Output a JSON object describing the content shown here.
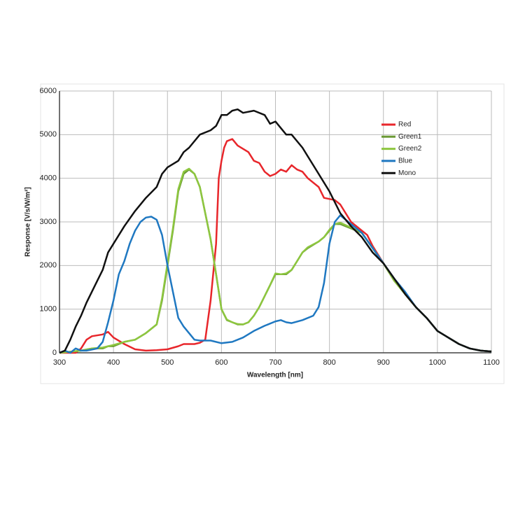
{
  "chart_data": {
    "type": "line",
    "xlabel": "Wavelength [nm]",
    "ylabel": "Response [V/s/W/m²]",
    "xlim": [
      300,
      1100
    ],
    "xticks": [
      300,
      400,
      500,
      600,
      700,
      800,
      900,
      1000,
      1100
    ],
    "ylim": [
      0,
      6000
    ],
    "yticks": [
      0,
      1000,
      2000,
      3000,
      4000,
      5000,
      6000
    ],
    "grid": true,
    "legend": "upper right",
    "series": [
      {
        "name": "Red",
        "color": "#e8262b",
        "x": [
          300,
          330,
          340,
          350,
          360,
          380,
          390,
          400,
          420,
          440,
          460,
          480,
          500,
          520,
          530,
          550,
          560,
          570,
          580,
          590,
          595,
          600,
          605,
          610,
          620,
          630,
          650,
          660,
          670,
          680,
          690,
          700,
          710,
          720,
          730,
          740,
          750,
          760,
          780,
          790,
          810,
          820,
          840,
          860,
          870,
          880,
          900,
          920,
          930,
          940,
          960,
          980,
          1000,
          1020,
          1040,
          1060,
          1080,
          1100
        ],
        "values": [
          0,
          0,
          100,
          300,
          380,
          420,
          480,
          350,
          200,
          80,
          50,
          60,
          80,
          150,
          200,
          200,
          230,
          300,
          1200,
          2500,
          4000,
          4400,
          4700,
          4850,
          4900,
          4750,
          4600,
          4400,
          4350,
          4150,
          4050,
          4100,
          4200,
          4150,
          4300,
          4200,
          4150,
          4000,
          3800,
          3550,
          3500,
          3400,
          3000,
          2800,
          2700,
          2450,
          2050,
          1650,
          1550,
          1350,
          1050,
          800,
          500,
          350,
          200,
          100,
          50,
          30
        ]
      },
      {
        "name": "Green1",
        "color": "#6b9a35",
        "x": [
          300,
          340,
          360,
          380,
          390,
          400,
          420,
          440,
          460,
          480,
          490,
          500,
          510,
          520,
          530,
          540,
          550,
          560,
          570,
          580,
          590,
          600,
          610,
          620,
          630,
          640,
          650,
          660,
          670,
          680,
          690,
          700,
          710,
          720,
          730,
          740,
          750,
          760,
          780,
          790,
          800,
          810,
          820,
          840,
          860,
          880,
          900,
          920,
          940,
          960,
          980,
          1000,
          1020,
          1040,
          1060,
          1080,
          1100
        ],
        "values": [
          0,
          50,
          100,
          100,
          150,
          150,
          250,
          300,
          450,
          650,
          1200,
          2000,
          2800,
          3700,
          4100,
          4200,
          4100,
          3800,
          3200,
          2600,
          1800,
          1000,
          750,
          700,
          650,
          650,
          700,
          850,
          1050,
          1300,
          1550,
          1800,
          1800,
          1800,
          1900,
          2100,
          2300,
          2400,
          2550,
          2650,
          2800,
          2950,
          2950,
          2850,
          2750,
          2400,
          2050,
          1650,
          1350,
          1050,
          800,
          500,
          350,
          200,
          100,
          50,
          30
        ]
      },
      {
        "name": "Green2",
        "color": "#8dc63f",
        "x": [
          300,
          340,
          360,
          380,
          390,
          400,
          420,
          440,
          460,
          480,
          490,
          500,
          510,
          520,
          530,
          540,
          550,
          560,
          570,
          580,
          590,
          600,
          610,
          620,
          630,
          640,
          650,
          660,
          670,
          680,
          690,
          700,
          710,
          720,
          730,
          740,
          750,
          760,
          780,
          790,
          800,
          810,
          820,
          840,
          860,
          880,
          900,
          920,
          940,
          960,
          980,
          1000,
          1020,
          1040,
          1060,
          1080,
          1100
        ],
        "values": [
          0,
          50,
          100,
          120,
          150,
          180,
          250,
          300,
          450,
          650,
          1250,
          2050,
          2850,
          3750,
          4150,
          4220,
          4100,
          3800,
          3200,
          2600,
          1800,
          1000,
          760,
          700,
          660,
          650,
          700,
          850,
          1050,
          1300,
          1550,
          1820,
          1800,
          1820,
          1900,
          2100,
          2300,
          2420,
          2550,
          2650,
          2820,
          2950,
          2980,
          2870,
          2750,
          2400,
          2050,
          1650,
          1350,
          1050,
          800,
          500,
          350,
          200,
          100,
          50,
          30
        ]
      },
      {
        "name": "Blue",
        "color": "#1f78c1",
        "x": [
          300,
          310,
          320,
          330,
          340,
          350,
          370,
          380,
          390,
          400,
          410,
          420,
          430,
          440,
          450,
          460,
          470,
          480,
          490,
          500,
          510,
          520,
          530,
          540,
          550,
          560,
          580,
          600,
          620,
          640,
          660,
          680,
          700,
          710,
          720,
          730,
          750,
          770,
          780,
          790,
          800,
          810,
          820,
          830,
          840,
          860,
          880,
          900,
          920,
          940,
          960,
          980,
          1000,
          1020,
          1040,
          1060,
          1080,
          1100
        ],
        "values": [
          0,
          50,
          0,
          100,
          50,
          50,
          100,
          250,
          700,
          1200,
          1800,
          2100,
          2500,
          2800,
          3000,
          3100,
          3120,
          3050,
          2700,
          2000,
          1400,
          800,
          600,
          450,
          300,
          280,
          280,
          220,
          250,
          350,
          500,
          620,
          720,
          750,
          700,
          680,
          750,
          850,
          1050,
          1600,
          2500,
          3000,
          3150,
          3050,
          2950,
          2750,
          2400,
          2050,
          1700,
          1400,
          1050,
          800,
          500,
          350,
          200,
          100,
          50,
          30
        ]
      },
      {
        "name": "Mono",
        "color": "#111111",
        "x": [
          300,
          310,
          320,
          330,
          340,
          350,
          360,
          370,
          380,
          390,
          400,
          420,
          440,
          460,
          480,
          490,
          500,
          520,
          530,
          540,
          560,
          580,
          590,
          600,
          610,
          620,
          630,
          640,
          660,
          680,
          690,
          700,
          720,
          730,
          750,
          760,
          780,
          800,
          820,
          840,
          860,
          880,
          900,
          920,
          940,
          960,
          980,
          1000,
          1020,
          1040,
          1060,
          1080,
          1100
        ],
        "values": [
          0,
          50,
          300,
          600,
          850,
          1150,
          1400,
          1650,
          1900,
          2300,
          2500,
          2900,
          3250,
          3550,
          3800,
          4100,
          4250,
          4400,
          4600,
          4700,
          5000,
          5100,
          5200,
          5450,
          5450,
          5550,
          5580,
          5500,
          5550,
          5450,
          5250,
          5300,
          5000,
          5000,
          4700,
          4500,
          4100,
          3700,
          3200,
          2900,
          2650,
          2300,
          2050,
          1700,
          1350,
          1050,
          800,
          500,
          350,
          200,
          100,
          50,
          30
        ]
      }
    ]
  }
}
